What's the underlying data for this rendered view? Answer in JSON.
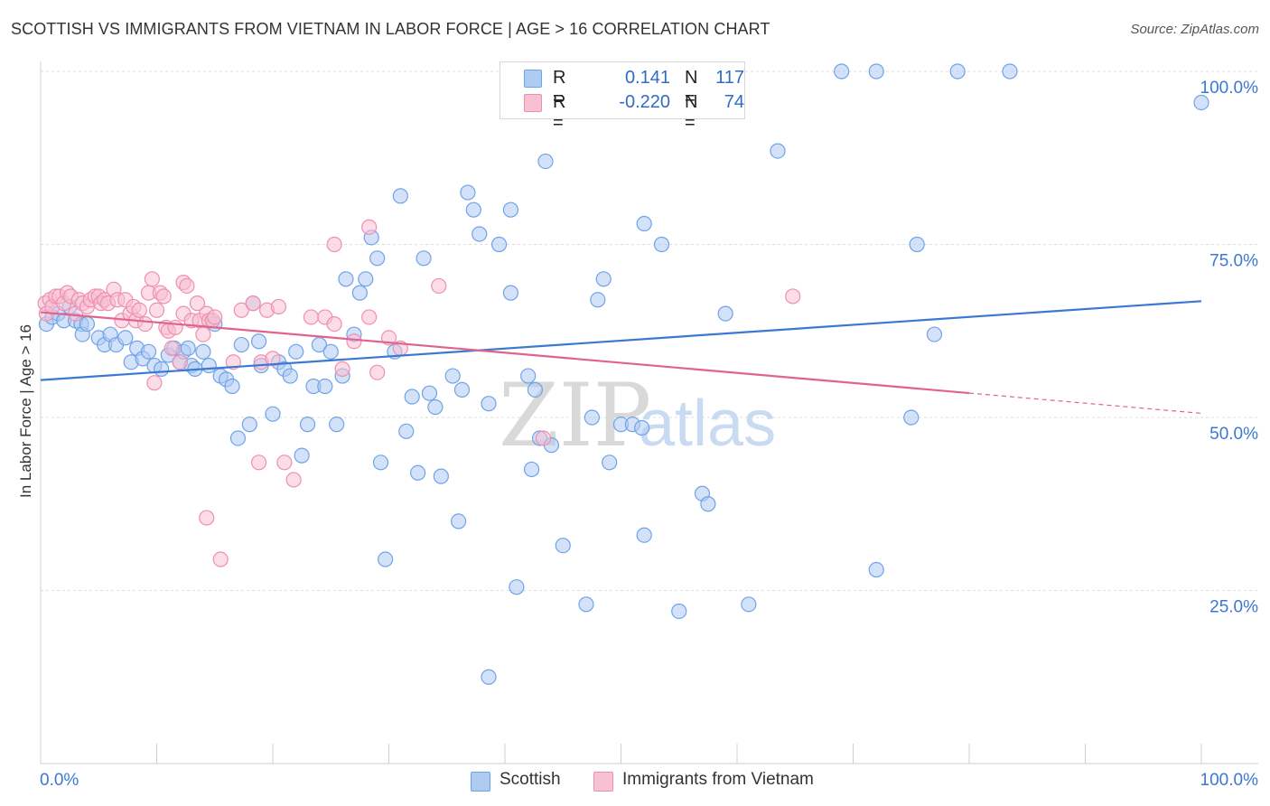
{
  "title": "SCOTTISH VS IMMIGRANTS FROM VIETNAM IN LABOR FORCE | AGE > 16 CORRELATION CHART",
  "source": "Source: ZipAtlas.com",
  "watermark": {
    "zip": "ZIP",
    "atlas": "atlas"
  },
  "legend": {
    "r_label": "R =",
    "n_label": "N =",
    "items": [
      {
        "name": "Scottish",
        "r": "0.141",
        "n": "117",
        "color": "#6fa3e8",
        "fill": "#aecbf2"
      },
      {
        "name": "Immigrants from Vietnam",
        "r": "-0.220",
        "n": "74",
        "color": "#ef8fb0",
        "fill": "#f7c0d3"
      }
    ]
  },
  "chart_data": {
    "type": "scatter",
    "ylabel": "In Labor Force | Age > 16",
    "xlim": [
      0,
      100
    ],
    "ylim": [
      0,
      100
    ],
    "x_tick_labels": [
      "0.0%",
      "100.0%"
    ],
    "y_tick_labels": [
      "25.0%",
      "50.0%",
      "75.0%",
      "100.0%"
    ],
    "y_ticks": [
      25,
      50,
      75,
      100
    ],
    "grid": true,
    "series": [
      {
        "name": "Scottish",
        "color": "#3b78d4",
        "point_color": "#6fa3e8",
        "point_fill": "#aecbf2",
        "trend": {
          "x": [
            0,
            100
          ],
          "y": [
            55.4,
            66.8
          ],
          "dashed_from": null
        },
        "points": [
          [
            0.5,
            63.5
          ],
          [
            1,
            64.5
          ],
          [
            1.5,
            65
          ],
          [
            2,
            64
          ],
          [
            2.5,
            66
          ],
          [
            3,
            64
          ],
          [
            3.5,
            63.5
          ],
          [
            3.6,
            62
          ],
          [
            4,
            63.5
          ],
          [
            5,
            61.5
          ],
          [
            5.5,
            60.5
          ],
          [
            6,
            62
          ],
          [
            6.5,
            60.5
          ],
          [
            7.3,
            61.5
          ],
          [
            7.8,
            58
          ],
          [
            8.3,
            60
          ],
          [
            8.8,
            58.5
          ],
          [
            9.3,
            59.5
          ],
          [
            9.8,
            57.5
          ],
          [
            10.4,
            57
          ],
          [
            11,
            59
          ],
          [
            11.5,
            60
          ],
          [
            12,
            58
          ],
          [
            12.3,
            59.5
          ],
          [
            12.7,
            60
          ],
          [
            13,
            57.5
          ],
          [
            13.3,
            57
          ],
          [
            14,
            59.5
          ],
          [
            14.5,
            57.5
          ],
          [
            15,
            63.5
          ],
          [
            15.5,
            56
          ],
          [
            16,
            55.5
          ],
          [
            16.5,
            54.5
          ],
          [
            17,
            47
          ],
          [
            17.3,
            60.5
          ],
          [
            18,
            49
          ],
          [
            18.3,
            66.5
          ],
          [
            18.8,
            61
          ],
          [
            19,
            57.5
          ],
          [
            20,
            50.5
          ],
          [
            20.5,
            58
          ],
          [
            21,
            57
          ],
          [
            21.5,
            56
          ],
          [
            22,
            59.5
          ],
          [
            22.5,
            44.5
          ],
          [
            23,
            49
          ],
          [
            23.5,
            54.5
          ],
          [
            24,
            60.5
          ],
          [
            24.5,
            54.5
          ],
          [
            25,
            59.5
          ],
          [
            25.5,
            49
          ],
          [
            26,
            56
          ],
          [
            26.3,
            70
          ],
          [
            27,
            62
          ],
          [
            27.5,
            68
          ],
          [
            28,
            70
          ],
          [
            28.5,
            76
          ],
          [
            29,
            73
          ],
          [
            29.3,
            43.5
          ],
          [
            29.7,
            29.5
          ],
          [
            30.5,
            59.5
          ],
          [
            31,
            82
          ],
          [
            31.5,
            48
          ],
          [
            32,
            53
          ],
          [
            32.5,
            42
          ],
          [
            33,
            73
          ],
          [
            33.5,
            53.5
          ],
          [
            34,
            51.5
          ],
          [
            34.5,
            41.5
          ],
          [
            35.5,
            56
          ],
          [
            36,
            35
          ],
          [
            36.3,
            54
          ],
          [
            36.8,
            82.5
          ],
          [
            37.3,
            80
          ],
          [
            37.8,
            76.5
          ],
          [
            38.6,
            52
          ],
          [
            38.6,
            12.5
          ],
          [
            39.5,
            75
          ],
          [
            40.5,
            80
          ],
          [
            40.5,
            68
          ],
          [
            41,
            25.5
          ],
          [
            42,
            56
          ],
          [
            42.3,
            42.5
          ],
          [
            42.6,
            54
          ],
          [
            43,
            47
          ],
          [
            43.5,
            87
          ],
          [
            44,
            46
          ],
          [
            45,
            31.5
          ],
          [
            47,
            23
          ],
          [
            47.5,
            50
          ],
          [
            48,
            67
          ],
          [
            48.5,
            70
          ],
          [
            49,
            43.5
          ],
          [
            50,
            49
          ],
          [
            51,
            49
          ],
          [
            51.8,
            48.5
          ],
          [
            52,
            78
          ],
          [
            52,
            33
          ],
          [
            53.5,
            75
          ],
          [
            55,
            22
          ],
          [
            57,
            39
          ],
          [
            57.5,
            37.5
          ],
          [
            59,
            65
          ],
          [
            61,
            23
          ],
          [
            63.5,
            88.5
          ],
          [
            69,
            100
          ],
          [
            72,
            100
          ],
          [
            72,
            28
          ],
          [
            75,
            50
          ],
          [
            75.5,
            75
          ],
          [
            77,
            62
          ],
          [
            79,
            100
          ],
          [
            83.5,
            100
          ],
          [
            100,
            95.5
          ],
          [
            45.5,
            100
          ],
          [
            59,
            100
          ]
        ]
      },
      {
        "name": "Immigrants from Vietnam",
        "color": "#e2628f",
        "point_color": "#ef8fb0",
        "point_fill": "#f7c0d3",
        "trend": {
          "x": [
            0,
            100
          ],
          "y": [
            65.2,
            50.6
          ],
          "dashed_from": 80
        },
        "points": [
          [
            0.4,
            66.5
          ],
          [
            0.5,
            65
          ],
          [
            0.8,
            67
          ],
          [
            1,
            66
          ],
          [
            1.3,
            67.5
          ],
          [
            1.6,
            67.5
          ],
          [
            2,
            66.5
          ],
          [
            2.3,
            68
          ],
          [
            2.6,
            67.5
          ],
          [
            3,
            65
          ],
          [
            3.3,
            67
          ],
          [
            3.6,
            66.5
          ],
          [
            4,
            66
          ],
          [
            4.3,
            67
          ],
          [
            4.7,
            67.5
          ],
          [
            5,
            67.5
          ],
          [
            5.2,
            66.5
          ],
          [
            5.5,
            67
          ],
          [
            5.8,
            66.5
          ],
          [
            6.3,
            68.5
          ],
          [
            6.6,
            67
          ],
          [
            7,
            64
          ],
          [
            7.3,
            67
          ],
          [
            7.7,
            65
          ],
          [
            8,
            66
          ],
          [
            8.2,
            64
          ],
          [
            8.5,
            65.5
          ],
          [
            9,
            63.5
          ],
          [
            9.3,
            68
          ],
          [
            9.6,
            70
          ],
          [
            9.8,
            55
          ],
          [
            10,
            65.5
          ],
          [
            10.3,
            68
          ],
          [
            10.6,
            67.5
          ],
          [
            10.8,
            63
          ],
          [
            11,
            62.5
          ],
          [
            11.3,
            60
          ],
          [
            11.6,
            63
          ],
          [
            12,
            58
          ],
          [
            12.3,
            69.5
          ],
          [
            12.6,
            69
          ],
          [
            12.3,
            65
          ],
          [
            13,
            64
          ],
          [
            13.5,
            66.5
          ],
          [
            13.7,
            64
          ],
          [
            14,
            62
          ],
          [
            14.3,
            65
          ],
          [
            14.5,
            64
          ],
          [
            14.8,
            64
          ],
          [
            15,
            64.5
          ],
          [
            14.3,
            35.5
          ],
          [
            15.5,
            29.5
          ],
          [
            16.6,
            58
          ],
          [
            17.3,
            65.5
          ],
          [
            18.3,
            66.5
          ],
          [
            18.8,
            43.5
          ],
          [
            19,
            58
          ],
          [
            19.5,
            65.5
          ],
          [
            20,
            58.5
          ],
          [
            20.5,
            66
          ],
          [
            21,
            43.5
          ],
          [
            21.8,
            41
          ],
          [
            23.3,
            64.5
          ],
          [
            24.5,
            64.5
          ],
          [
            25.3,
            63.5
          ],
          [
            25.3,
            75
          ],
          [
            26,
            57
          ],
          [
            27,
            61
          ],
          [
            28.3,
            77.5
          ],
          [
            28.3,
            64.5
          ],
          [
            29,
            56.5
          ],
          [
            30,
            61.5
          ],
          [
            31,
            60
          ],
          [
            34.3,
            69
          ],
          [
            43.3,
            47
          ],
          [
            64.8,
            67.5
          ]
        ]
      }
    ]
  }
}
